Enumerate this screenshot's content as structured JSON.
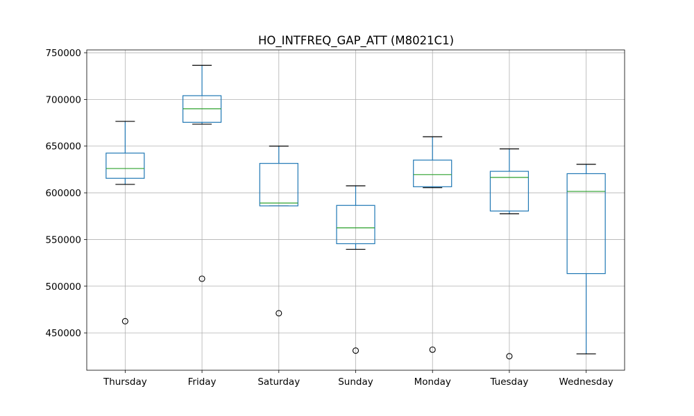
{
  "chart_data": {
    "type": "box",
    "title": "HO_INTFREQ_GAP_ATT (M8021C1)",
    "xlabel": "",
    "ylabel": "",
    "ylim": [
      410000,
      753000
    ],
    "yticks": [
      450000,
      500000,
      550000,
      600000,
      650000,
      700000,
      750000
    ],
    "ytick_labels": [
      "450000",
      "500000",
      "550000",
      "600000",
      "650000",
      "700000",
      "750000"
    ],
    "grid": true,
    "categories": [
      "Thursday",
      "Friday",
      "Saturday",
      "Sunday",
      "Monday",
      "Tuesday",
      "Wednesday"
    ],
    "boxes": [
      {
        "name": "Thursday",
        "whislo": 609000,
        "q1": 615500,
        "med": 626000,
        "q3": 642500,
        "whishi": 676500,
        "fliers": [
          462500
        ]
      },
      {
        "name": "Friday",
        "whislo": 673500,
        "q1": 675500,
        "med": 690000,
        "q3": 704000,
        "whishi": 736500,
        "fliers": [
          508000
        ]
      },
      {
        "name": "Saturday",
        "whislo": 586000,
        "q1": 586000,
        "med": 589000,
        "q3": 631500,
        "whishi": 650000,
        "fliers": [
          471000
        ]
      },
      {
        "name": "Sunday",
        "whislo": 539500,
        "q1": 545500,
        "med": 562500,
        "q3": 586500,
        "whishi": 607500,
        "fliers": [
          431000
        ]
      },
      {
        "name": "Monday",
        "whislo": 605500,
        "q1": 606500,
        "med": 619500,
        "q3": 635000,
        "whishi": 660000,
        "fliers": [
          432000
        ]
      },
      {
        "name": "Tuesday",
        "whislo": 577500,
        "q1": 580500,
        "med": 616500,
        "q3": 623000,
        "whishi": 647000,
        "fliers": [
          425000
        ]
      },
      {
        "name": "Wednesday",
        "whislo": 427500,
        "q1": 513500,
        "med": 601500,
        "q3": 620500,
        "whishi": 630500,
        "fliers": []
      }
    ],
    "colors": {
      "box": "#1f77b4",
      "median": "#2ca02c",
      "cap": "#000000",
      "grid": "#b0b0b0"
    }
  }
}
